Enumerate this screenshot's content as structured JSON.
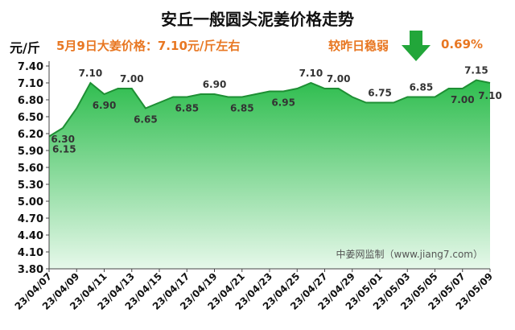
{
  "header": {
    "title": "安丘一般圆头泥姜价格走势",
    "unit": "元/斤",
    "price_note": "5月9日大姜价格：7.10元/斤左右",
    "change_label": "较昨日稳弱",
    "change_value": "0.69%",
    "arrow_icon": "down-arrow-icon",
    "arrow_color": "#22A63A"
  },
  "watermark": "中姜网监制（www.jiang7.com）",
  "chart_data": {
    "type": "area",
    "x": [
      "23/04/07",
      "23/04/08",
      "23/04/09",
      "23/04/10",
      "23/04/11",
      "23/04/12",
      "23/04/13",
      "23/04/14",
      "23/04/15",
      "23/04/16",
      "23/04/17",
      "23/04/18",
      "23/04/19",
      "23/04/20",
      "23/04/21",
      "23/04/22",
      "23/04/23",
      "23/04/24",
      "23/04/25",
      "23/04/26",
      "23/04/27",
      "23/04/28",
      "23/04/29",
      "23/04/30",
      "23/05/01",
      "23/05/02",
      "23/05/03",
      "23/05/04",
      "23/05/05",
      "23/05/06",
      "23/05/07",
      "23/05/08",
      "23/05/09"
    ],
    "values": [
      6.15,
      6.3,
      6.65,
      7.1,
      6.9,
      7.0,
      7.0,
      6.65,
      6.75,
      6.85,
      6.85,
      6.9,
      6.9,
      6.85,
      6.85,
      6.9,
      6.95,
      6.95,
      7.0,
      7.1,
      7.0,
      7.0,
      6.85,
      6.75,
      6.75,
      6.75,
      6.85,
      6.85,
      6.85,
      7.0,
      7.0,
      7.15,
      7.1
    ],
    "data_labels": [
      {
        "index": 0,
        "text": "6.15"
      },
      {
        "index": 1,
        "text": "6.30"
      },
      {
        "index": 3,
        "text": "7.10"
      },
      {
        "index": 4,
        "text": "6.90"
      },
      {
        "index": 6,
        "text": "7.00"
      },
      {
        "index": 7,
        "text": "6.65"
      },
      {
        "index": 10,
        "text": "6.85"
      },
      {
        "index": 12,
        "text": "6.90"
      },
      {
        "index": 14,
        "text": "6.85"
      },
      {
        "index": 17,
        "text": "6.95"
      },
      {
        "index": 19,
        "text": "7.10"
      },
      {
        "index": 21,
        "text": "7.00"
      },
      {
        "index": 24,
        "text": "6.75"
      },
      {
        "index": 27,
        "text": "6.85"
      },
      {
        "index": 30,
        "text": "7.00"
      },
      {
        "index": 31,
        "text": "7.15"
      },
      {
        "index": 32,
        "text": "7.10"
      }
    ],
    "x_tick_labels": [
      "23/04/07",
      "23/04/09",
      "23/04/11",
      "23/04/13",
      "23/04/15",
      "23/04/17",
      "23/04/19",
      "23/04/21",
      "23/04/23",
      "23/04/25",
      "23/04/27",
      "23/04/29",
      "23/05/01",
      "23/05/03",
      "23/05/05",
      "23/05/07",
      "23/05/09"
    ],
    "y_ticks": [
      3.8,
      4.1,
      4.4,
      4.7,
      5.0,
      5.3,
      5.6,
      5.9,
      6.2,
      6.5,
      6.8,
      7.1,
      7.4
    ],
    "ylim": [
      3.8,
      7.4
    ],
    "grid": false,
    "fill_top": "#2EBD4E",
    "fill_bottom": "#E6F8EA",
    "line_color": "#1E8F34"
  }
}
